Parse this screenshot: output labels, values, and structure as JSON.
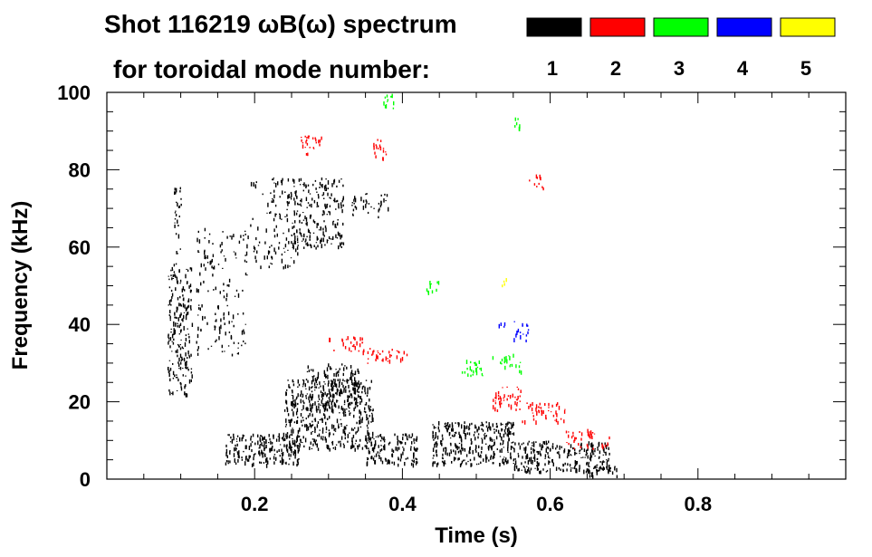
{
  "chart_data": {
    "type": "scatter",
    "title_line1": "Shot 116219 ωB(ω) spectrum",
    "title_line2": "for toroidal mode number:",
    "xlabel": "Time (s)",
    "ylabel": "Frequency (kHz)",
    "xlim": [
      0.0,
      1.0
    ],
    "ylim": [
      0,
      100
    ],
    "x_ticks": [
      0.2,
      0.4,
      0.6,
      0.8
    ],
    "x_tick_labels": [
      "0.2",
      "0.4",
      "0.6",
      "0.8"
    ],
    "y_ticks": [
      0,
      20,
      40,
      60,
      80,
      100
    ],
    "y_tick_labels": [
      "0",
      "20",
      "40",
      "60",
      "80",
      "100"
    ],
    "legend": [
      {
        "label": "1",
        "color": "#000000"
      },
      {
        "label": "2",
        "color": "#ff0000"
      },
      {
        "label": "3",
        "color": "#00ff00"
      },
      {
        "label": "4",
        "color": "#0000ff"
      },
      {
        "label": "5",
        "color": "#ffff00"
      }
    ],
    "series": [
      {
        "name": "n=1",
        "color": "#000000",
        "regions": [
          {
            "t0": 0.082,
            "t1": 0.115,
            "f0": 22,
            "f1": 55,
            "density": 0.55
          },
          {
            "t0": 0.09,
            "t1": 0.1,
            "f0": 55,
            "f1": 78,
            "density": 0.35
          },
          {
            "t0": 0.12,
            "t1": 0.19,
            "f0": 32,
            "f1": 65,
            "density": 0.18
          },
          {
            "t0": 0.19,
            "t1": 0.26,
            "f0": 55,
            "f1": 78,
            "density": 0.22
          },
          {
            "t0": 0.25,
            "t1": 0.32,
            "f0": 60,
            "f1": 78,
            "density": 0.45
          },
          {
            "t0": 0.33,
            "t1": 0.38,
            "f0": 68,
            "f1": 74,
            "density": 0.35
          },
          {
            "t0": 0.16,
            "t1": 0.26,
            "f0": 4,
            "f1": 12,
            "density": 0.75
          },
          {
            "t0": 0.24,
            "t1": 0.36,
            "f0": 8,
            "f1": 26,
            "density": 0.6
          },
          {
            "t0": 0.27,
            "t1": 0.34,
            "f0": 18,
            "f1": 30,
            "density": 0.5
          },
          {
            "t0": 0.35,
            "t1": 0.42,
            "f0": 4,
            "f1": 12,
            "density": 0.7
          },
          {
            "t0": 0.44,
            "t1": 0.55,
            "f0": 4,
            "f1": 15,
            "density": 0.75
          },
          {
            "t0": 0.55,
            "t1": 0.68,
            "f0": 2,
            "f1": 10,
            "density": 0.7
          },
          {
            "t0": 0.65,
            "t1": 0.69,
            "f0": 1,
            "f1": 4,
            "density": 0.7
          }
        ]
      },
      {
        "name": "n=2",
        "color": "#ff0000",
        "regions": [
          {
            "t0": 0.26,
            "t1": 0.29,
            "f0": 84,
            "f1": 89,
            "density": 0.5
          },
          {
            "t0": 0.36,
            "t1": 0.38,
            "f0": 83,
            "f1": 88,
            "density": 0.5
          },
          {
            "t0": 0.3,
            "t1": 0.35,
            "f0": 33,
            "f1": 37,
            "density": 0.4
          },
          {
            "t0": 0.35,
            "t1": 0.41,
            "f0": 30,
            "f1": 34,
            "density": 0.4
          },
          {
            "t0": 0.52,
            "t1": 0.56,
            "f0": 18,
            "f1": 24,
            "density": 0.55
          },
          {
            "t0": 0.56,
            "t1": 0.62,
            "f0": 15,
            "f1": 20,
            "density": 0.45
          },
          {
            "t0": 0.62,
            "t1": 0.68,
            "f0": 8,
            "f1": 13,
            "density": 0.35
          },
          {
            "t0": 0.57,
            "t1": 0.59,
            "f0": 75,
            "f1": 79,
            "density": 0.4
          }
        ]
      },
      {
        "name": "n=3",
        "color": "#00ff00",
        "regions": [
          {
            "t0": 0.37,
            "t1": 0.39,
            "f0": 96,
            "f1": 100,
            "density": 0.4
          },
          {
            "t0": 0.43,
            "t1": 0.45,
            "f0": 48,
            "f1": 52,
            "density": 0.4
          },
          {
            "t0": 0.48,
            "t1": 0.51,
            "f0": 26,
            "f1": 31,
            "density": 0.45
          },
          {
            "t0": 0.52,
            "t1": 0.56,
            "f0": 28,
            "f1": 33,
            "density": 0.3
          },
          {
            "t0": 0.55,
            "t1": 0.56,
            "f0": 90,
            "f1": 94,
            "density": 0.5
          }
        ]
      },
      {
        "name": "n=4",
        "color": "#0000ff",
        "regions": [
          {
            "t0": 0.55,
            "t1": 0.57,
            "f0": 36,
            "f1": 41,
            "density": 0.5
          },
          {
            "t0": 0.53,
            "t1": 0.54,
            "f0": 39,
            "f1": 41,
            "density": 0.5
          }
        ]
      },
      {
        "name": "n=5",
        "color": "#ffff00",
        "regions": [
          {
            "t0": 0.53,
            "t1": 0.54,
            "f0": 50,
            "f1": 52,
            "density": 0.5
          }
        ]
      }
    ]
  }
}
